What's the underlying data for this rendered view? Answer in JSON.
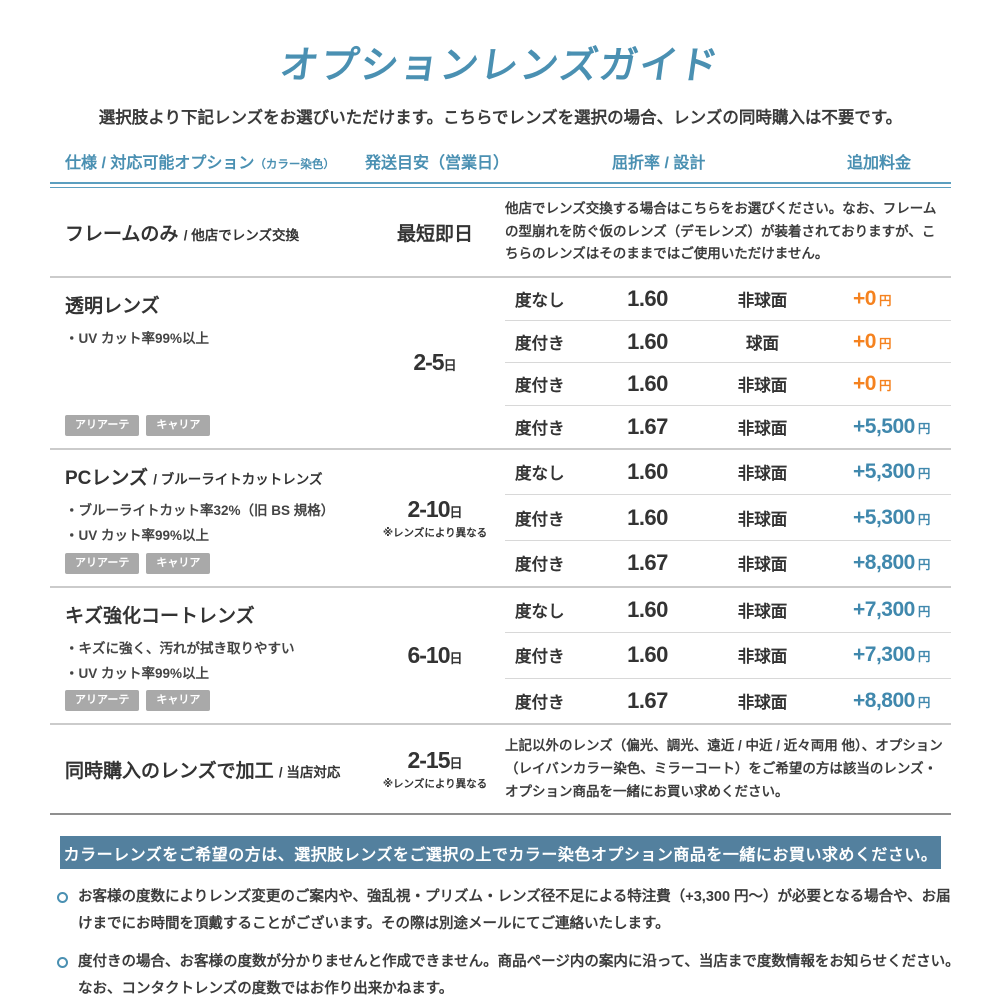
{
  "page": {
    "title": "オプションレンズガイド",
    "subtitle": "選択肢より下記レンズをお選びいただけます。こちらでレンズを選択の場合、レンズの同時購入は不要です。"
  },
  "labels": {
    "yen": "円",
    "day": "日"
  },
  "colors": {
    "accent_blue": "#4a90b2",
    "price_orange": "#f5821f",
    "price_blue": "#4088ad",
    "banner_bg": "#53809e",
    "tag_gray": "#a9a9a9"
  },
  "headers": {
    "spec": "仕様 / 対応可能オプション",
    "spec_small": "（カラー染色）",
    "shipping": "発送目安（営業日）",
    "refraction": "屈折率 / 設計",
    "price": "追加料金"
  },
  "rows": [
    {
      "name": "フレームのみ",
      "suffix": "/ 他店でレンズ交換",
      "shipping": "最短即日",
      "description": "他店でレンズ交換する場合はこちらをお選びください。なお、フレームの型崩れを防ぐ仮のレンズ（デモレンズ）が装着されておりますが、こちらのレンズはそのままではご使用いただけません。"
    },
    {
      "name": "透明レンズ",
      "features": [
        "・UV カット率99%以上"
      ],
      "tags": [
        "アリアーテ",
        "キャリア"
      ],
      "shipping": "2-5",
      "options": [
        {
          "power": "度なし",
          "index": "1.60",
          "design": "非球面",
          "price": "+0"
        },
        {
          "power": "度付き",
          "index": "1.60",
          "design": "球面",
          "price": "+0"
        },
        {
          "power": "度付き",
          "index": "1.60",
          "design": "非球面",
          "price": "+0"
        },
        {
          "power": "度付き",
          "index": "1.67",
          "design": "非球面",
          "price": "+5,500"
        }
      ]
    },
    {
      "name": "PCレンズ",
      "suffix": "/ ブルーライトカットレンズ",
      "features": [
        "・ブルーライトカット率32%（旧 BS 規格）",
        "・UV カット率99%以上"
      ],
      "tags": [
        "アリアーテ",
        "キャリア"
      ],
      "shipping": "2-10",
      "shipping_note": "※レンズにより異なる",
      "options": [
        {
          "power": "度なし",
          "index": "1.60",
          "design": "非球面",
          "price": "+5,300"
        },
        {
          "power": "度付き",
          "index": "1.60",
          "design": "非球面",
          "price": "+5,300"
        },
        {
          "power": "度付き",
          "index": "1.67",
          "design": "非球面",
          "price": "+8,800"
        }
      ]
    },
    {
      "name": "キズ強化コートレンズ",
      "features": [
        "・キズに強く、汚れが拭き取りやすい",
        "・UV カット率99%以上"
      ],
      "tags": [
        "アリアーテ",
        "キャリア"
      ],
      "shipping": "6-10",
      "options": [
        {
          "power": "度なし",
          "index": "1.60",
          "design": "非球面",
          "price": "+7,300"
        },
        {
          "power": "度付き",
          "index": "1.60",
          "design": "非球面",
          "price": "+7,300"
        },
        {
          "power": "度付き",
          "index": "1.67",
          "design": "非球面",
          "price": "+8,800"
        }
      ]
    },
    {
      "name": "同時購入のレンズで加工",
      "suffix": "/ 当店対応",
      "shipping": "2-15",
      "shipping_note": "※レンズにより異なる",
      "description": "上記以外のレンズ（偏光、調光、遠近 / 中近 / 近々両用 他）、オプション（レイバンカラー染色、ミラーコート）をご希望の方は該当のレンズ・オプション商品を一緒にお買い求めください。"
    }
  ],
  "banner": "カラーレンズをご希望の方は、選択肢レンズをご選択の上でカラー染色オプション商品を一緒にお買い求めください。",
  "notes": [
    "お客様の度数によりレンズ変更のご案内や、強乱視・プリズム・レンズ径不足による特注費（+3,300 円〜）が必要となる場合や、お届けまでにお時間を頂戴することがございます。その際は別途メールにてご連絡いたします。",
    "度付きの場合、お客様の度数が分かりませんと作成できません。商品ページ内の案内に沿って、当店まで度数情報をお知らせください。なお、コンタクトレンズの度数ではお作り出来かねます。"
  ]
}
